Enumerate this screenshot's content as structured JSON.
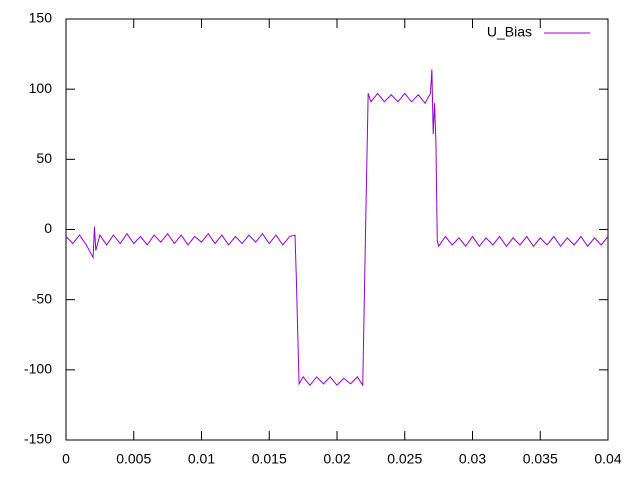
{
  "chart_data": {
    "type": "line",
    "x": [
      0,
      0.0005,
      0.001,
      0.0015,
      0.002,
      0.0021,
      0.0022,
      0.0025,
      0.003,
      0.0035,
      0.004,
      0.0045,
      0.005,
      0.0055,
      0.006,
      0.0065,
      0.007,
      0.0075,
      0.008,
      0.0085,
      0.009,
      0.0095,
      0.01,
      0.0105,
      0.011,
      0.0115,
      0.012,
      0.0125,
      0.013,
      0.0135,
      0.014,
      0.0145,
      0.015,
      0.0155,
      0.016,
      0.0165,
      0.0169,
      0.017,
      0.0172,
      0.0175,
      0.018,
      0.0185,
      0.019,
      0.0195,
      0.02,
      0.0205,
      0.021,
      0.0215,
      0.0219,
      0.0221,
      0.0223,
      0.0225,
      0.023,
      0.0235,
      0.024,
      0.0245,
      0.025,
      0.0255,
      0.026,
      0.0265,
      0.0269,
      0.027,
      0.0271,
      0.0272,
      0.0273,
      0.0274,
      0.0275,
      0.028,
      0.0285,
      0.029,
      0.0295,
      0.03,
      0.0305,
      0.031,
      0.0315,
      0.032,
      0.0325,
      0.033,
      0.0335,
      0.034,
      0.0345,
      0.035,
      0.0355,
      0.036,
      0.0365,
      0.037,
      0.0375,
      0.038,
      0.0385,
      0.039,
      0.0395,
      0.04
    ],
    "series": [
      {
        "name": "U_Bias",
        "color": "#9400d3",
        "values": [
          -5,
          -10,
          -4,
          -11,
          -20,
          2,
          -15,
          -4,
          -11,
          -4,
          -10,
          -3,
          -10,
          -5,
          -11,
          -4,
          -9,
          -3,
          -10,
          -4,
          -11,
          -5,
          -9,
          -3,
          -10,
          -4,
          -11,
          -5,
          -10,
          -4,
          -9,
          -3,
          -10,
          -4,
          -11,
          -5,
          -4,
          -35,
          -110,
          -105,
          -111,
          -105,
          -110,
          -105,
          -111,
          -106,
          -110,
          -105,
          -111,
          -5,
          97,
          91,
          97,
          91,
          96,
          91,
          97,
          91,
          96,
          90,
          97,
          114,
          68,
          90,
          62,
          -8,
          -12,
          -5,
          -11,
          -6,
          -12,
          -5,
          -12,
          -6,
          -11,
          -5,
          -12,
          -6,
          -11,
          -5,
          -12,
          -6,
          -11,
          -5,
          -12,
          -6,
          -11,
          -5,
          -12,
          -6,
          -11,
          -5
        ]
      }
    ],
    "xlim": [
      0,
      0.04
    ],
    "xticks": [
      0,
      0.005,
      0.01,
      0.015,
      0.02,
      0.025,
      0.03,
      0.035,
      0.04
    ],
    "ylim": [
      -150,
      150
    ],
    "yticks": [
      -150,
      -100,
      -50,
      0,
      50,
      100,
      150
    ],
    "legend": "top-right",
    "grid": false
  }
}
